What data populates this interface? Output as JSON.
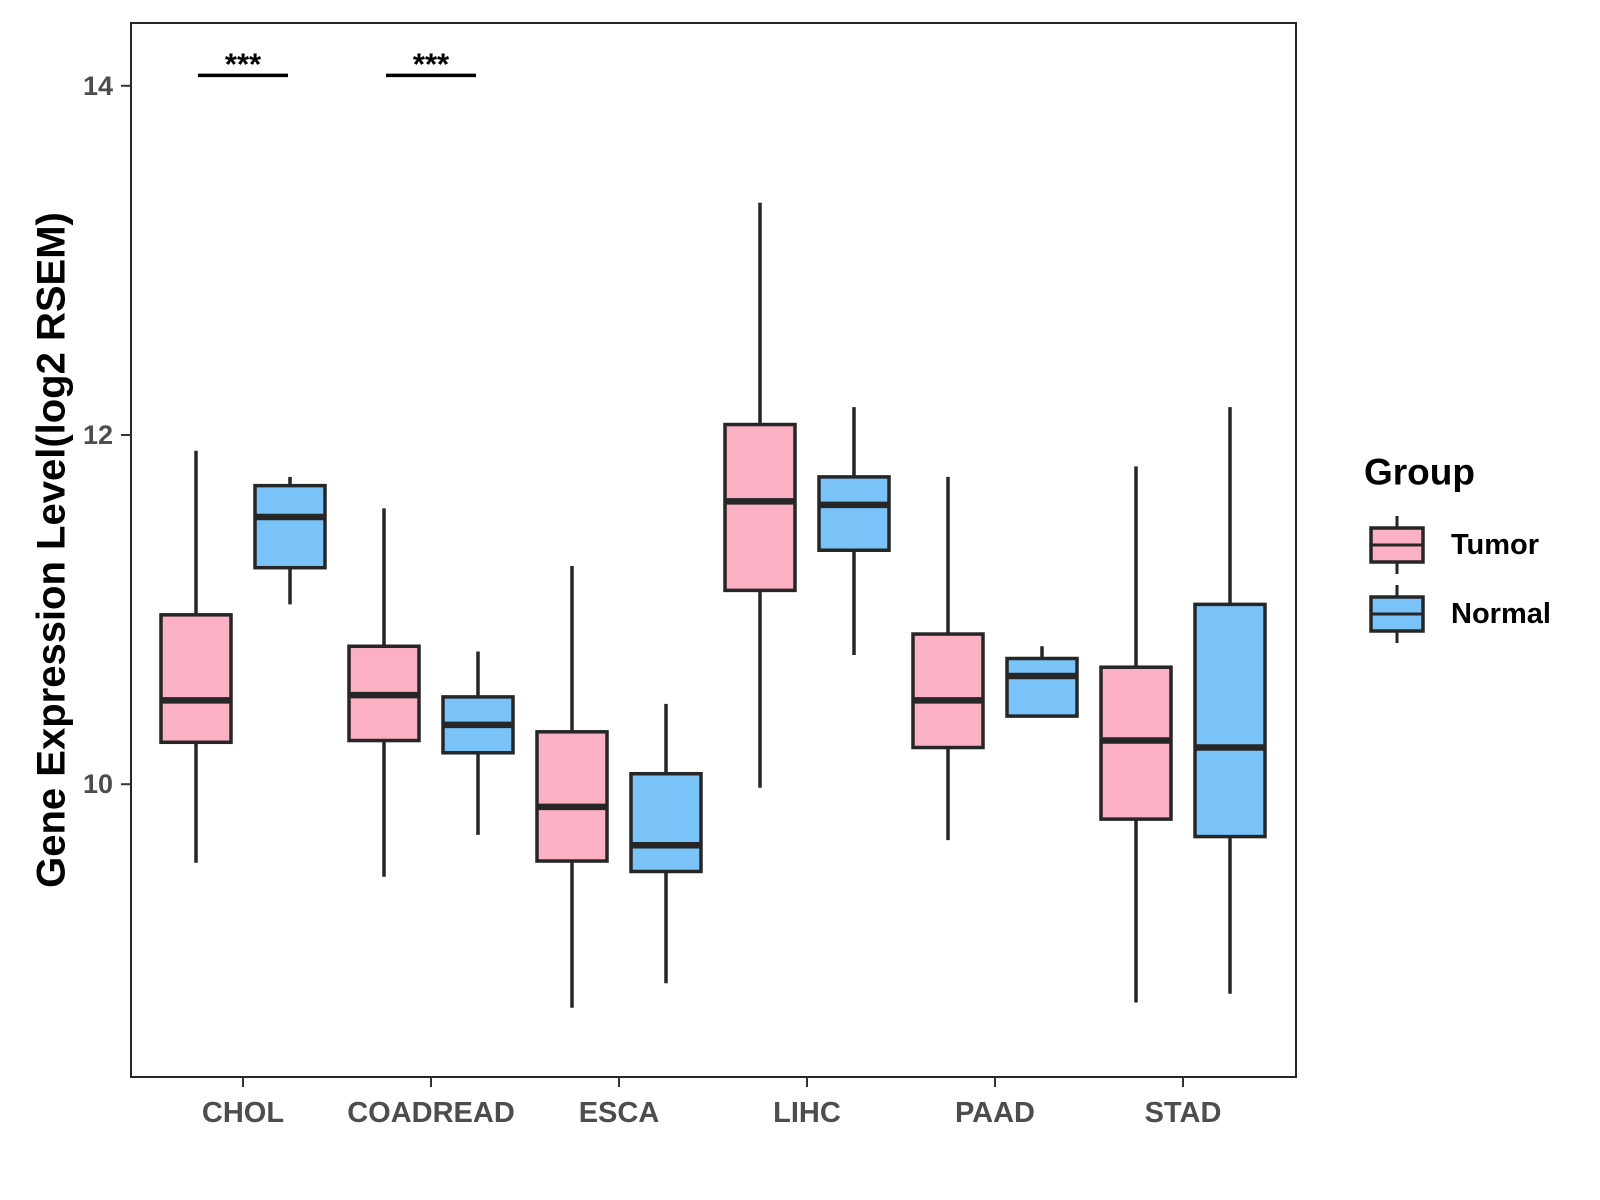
{
  "chart_data": {
    "type": "boxplot",
    "title": "",
    "xlabel": "",
    "ylabel": "Gene Expression Level(log2 RSEM)",
    "ylim": [
      8.35,
      14.35
    ],
    "yticks": [
      10,
      12,
      14
    ],
    "ytick_labels": [
      "10",
      "12",
      "14"
    ],
    "categories": [
      "CHOL",
      "COADREAD",
      "ESCA",
      "LIHC",
      "PAAD",
      "STAD"
    ],
    "groups": [
      "Tumor",
      "Normal"
    ],
    "colors": {
      "Tumor": "#FBB1C3",
      "Normal": "#7AC3F9",
      "outline": "#262626"
    },
    "legend": {
      "title": "Group",
      "position": "right",
      "entries": [
        "Tumor",
        "Normal"
      ]
    },
    "series": [
      {
        "name": "Tumor",
        "boxes": [
          {
            "category": "CHOL",
            "whisker_low": 9.55,
            "q1": 10.24,
            "median": 10.48,
            "q3": 10.97,
            "whisker_high": 11.91
          },
          {
            "category": "COADREAD",
            "whisker_low": 9.47,
            "q1": 10.25,
            "median": 10.51,
            "q3": 10.79,
            "whisker_high": 11.58
          },
          {
            "category": "ESCA",
            "whisker_low": 8.72,
            "q1": 9.56,
            "median": 9.87,
            "q3": 10.3,
            "whisker_high": 11.25
          },
          {
            "category": "LIHC",
            "whisker_low": 9.98,
            "q1": 11.11,
            "median": 11.62,
            "q3": 12.06,
            "whisker_high": 13.33
          },
          {
            "category": "PAAD",
            "whisker_low": 9.68,
            "q1": 10.21,
            "median": 10.48,
            "q3": 10.86,
            "whisker_high": 11.76
          },
          {
            "category": "STAD",
            "whisker_low": 8.75,
            "q1": 9.8,
            "median": 10.25,
            "q3": 10.67,
            "whisker_high": 11.82
          }
        ]
      },
      {
        "name": "Normal",
        "boxes": [
          {
            "category": "CHOL",
            "whisker_low": 11.03,
            "q1": 11.24,
            "median": 11.53,
            "q3": 11.71,
            "whisker_high": 11.76
          },
          {
            "category": "COADREAD",
            "whisker_low": 9.71,
            "q1": 10.18,
            "median": 10.34,
            "q3": 10.5,
            "whisker_high": 10.76
          },
          {
            "category": "ESCA",
            "whisker_low": 8.86,
            "q1": 9.5,
            "median": 9.65,
            "q3": 10.06,
            "whisker_high": 10.46
          },
          {
            "category": "LIHC",
            "whisker_low": 10.74,
            "q1": 11.34,
            "median": 11.6,
            "q3": 11.76,
            "whisker_high": 12.16
          },
          {
            "category": "PAAD",
            "whisker_low": 10.39,
            "q1": 10.39,
            "median": 10.62,
            "q3": 10.72,
            "whisker_high": 10.79
          },
          {
            "category": "STAD",
            "whisker_low": 8.8,
            "q1": 9.7,
            "median": 10.21,
            "q3": 11.03,
            "whisker_high": 12.16
          }
        ]
      }
    ],
    "annotations": [
      {
        "category": "CHOL",
        "text": "***",
        "y": 14.06
      },
      {
        "category": "COADREAD",
        "text": "***",
        "y": 14.06
      }
    ]
  }
}
